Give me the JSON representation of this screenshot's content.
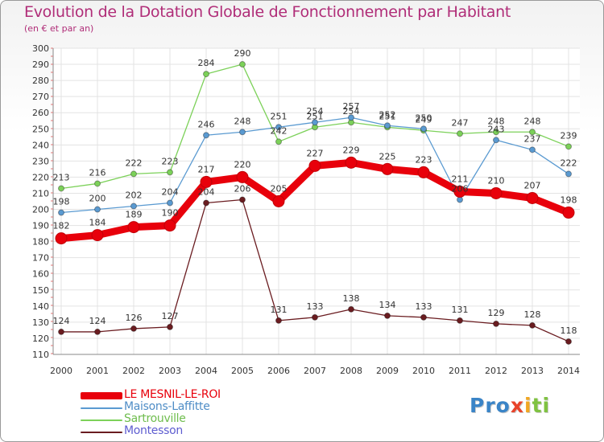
{
  "header": {
    "title": "Evolution de la Dotation Globale de Fonctionnement par Habitant",
    "subtitle": "(en € et par an)"
  },
  "chart_data": {
    "type": "line",
    "title": "Evolution de la Dotation Globale de Fonctionnement par Habitant",
    "subtitle": "(en € et par an)",
    "xlabel": "",
    "ylabel": "",
    "x": [
      "2000",
      "2001",
      "2002",
      "2003",
      "2004",
      "2005",
      "2006",
      "2007",
      "2008",
      "2009",
      "2010",
      "2011",
      "2012",
      "2013",
      "2014"
    ],
    "ylim": [
      110,
      300
    ],
    "yticks": [
      110,
      120,
      130,
      140,
      150,
      160,
      170,
      180,
      190,
      200,
      210,
      220,
      230,
      240,
      250,
      260,
      270,
      280,
      290,
      300
    ],
    "grid": true,
    "legend_position": "bottom-left",
    "series": [
      {
        "name": "LE MESNIL-LE-ROI",
        "color": "#e8000b",
        "values": [
          182,
          184,
          189,
          190,
          217,
          220,
          205,
          227,
          229,
          225,
          223,
          211,
          210,
          207,
          198
        ]
      },
      {
        "name": "Maisons-Laffitte",
        "color": "#5a9ad1",
        "values": [
          198,
          200,
          202,
          204,
          246,
          248,
          251,
          254,
          257,
          252,
          250,
          206,
          243,
          237,
          222
        ]
      },
      {
        "name": "Sartrouville",
        "color": "#7cd159",
        "values": [
          213,
          216,
          222,
          223,
          284,
          290,
          242,
          251,
          254,
          251,
          249,
          247,
          248,
          248,
          239
        ]
      },
      {
        "name": "Montesson",
        "color": "#6a1c20",
        "values": [
          124,
          124,
          126,
          127,
          204,
          206,
          131,
          133,
          138,
          134,
          133,
          131,
          129,
          128,
          118
        ]
      }
    ]
  },
  "logo": {
    "letters": [
      {
        "ch": "P",
        "color": "#3a84c7"
      },
      {
        "ch": "r",
        "color": "#3a84c7"
      },
      {
        "ch": "o",
        "color": "#3a84c7"
      },
      {
        "ch": "x",
        "color": "#e8432a"
      },
      {
        "ch": "i",
        "color": "#f1a722"
      },
      {
        "ch": "t",
        "color": "#7fc241"
      },
      {
        "ch": "i",
        "color": "#7fc241"
      }
    ]
  }
}
